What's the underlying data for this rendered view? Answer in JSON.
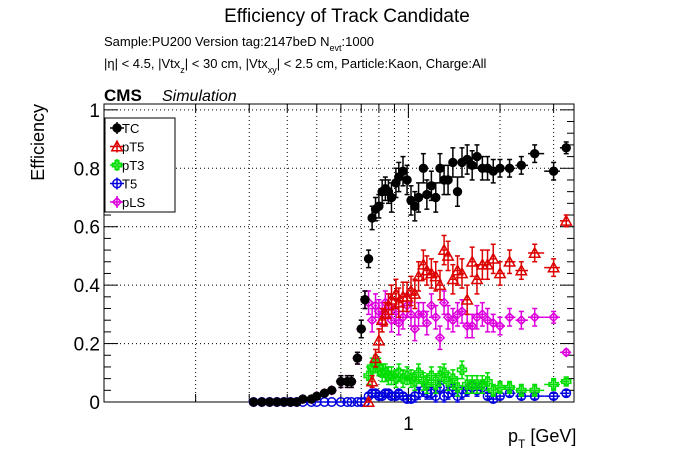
{
  "header": {
    "title": "Efficiency of Track Candidate",
    "line1_sample": "Sample:PU200   Version tag:2147beD  N",
    "line1_sub": "evt",
    "line1_end": ":1000",
    "line2_a": "|η| < 4.5, |Vtx",
    "line2_sub1": "z",
    "line2_b": "| < 30 cm, |Vtx",
    "line2_sub2": "xy",
    "line2_c": "| < 2.5 cm, Particle:Kaon, Charge:All"
  },
  "cms_label": "CMS",
  "sim_label": "Simulation",
  "chart_data": {
    "type": "scatter",
    "title": "Efficiency of Track Candidate",
    "xlabel": "p_T [GeV]",
    "xlabel_main": "p",
    "xlabel_sub": "T",
    "xlabel_unit": " [GeV]",
    "ylabel": "Efficiency",
    "x_scale": "log",
    "xlim": [
      0.1,
      3.5
    ],
    "ylim": [
      0,
      1.02
    ],
    "grid": true,
    "legend_position": "top-left",
    "x_tick_labels": [
      {
        "value": 1,
        "label": "1"
      }
    ],
    "y_ticks": [
      0,
      0.2,
      0.4,
      0.6,
      0.8,
      1
    ],
    "y_tick_labels": [
      "0",
      "0.2",
      "0.4",
      "0.6",
      "0.8",
      "1"
    ],
    "series": [
      {
        "name": "TC",
        "color": "#000000",
        "marker": "filled-circle",
        "x": [
          0.31,
          0.33,
          0.35,
          0.37,
          0.39,
          0.41,
          0.43,
          0.45,
          0.48,
          0.5,
          0.53,
          0.56,
          0.6,
          0.63,
          0.65,
          0.68,
          0.7,
          0.72,
          0.74,
          0.76,
          0.78,
          0.8,
          0.82,
          0.84,
          0.86,
          0.88,
          0.91,
          0.93,
          0.96,
          0.99,
          1.02,
          1.05,
          1.08,
          1.12,
          1.15,
          1.19,
          1.23,
          1.27,
          1.31,
          1.35,
          1.4,
          1.45,
          1.5,
          1.56,
          1.62,
          1.68,
          1.75,
          1.82,
          1.9,
          2.0,
          2.15,
          2.35,
          2.6,
          3.0,
          3.3
        ],
        "y": [
          0.0,
          0.0,
          0.0,
          0.0,
          0.0,
          0.0,
          0.0,
          0.01,
          0.01,
          0.02,
          0.03,
          0.04,
          0.07,
          0.07,
          0.07,
          0.15,
          0.25,
          0.35,
          0.49,
          0.63,
          0.66,
          0.67,
          0.72,
          0.73,
          0.72,
          0.7,
          0.75,
          0.77,
          0.79,
          0.76,
          0.69,
          0.67,
          0.7,
          0.8,
          0.71,
          0.74,
          0.7,
          0.8,
          0.76,
          0.76,
          0.82,
          0.72,
          0.82,
          0.83,
          0.81,
          0.84,
          0.8,
          0.8,
          0.79,
          0.8,
          0.8,
          0.81,
          0.85,
          0.79,
          0.87
        ],
        "err": [
          0.01,
          0.01,
          0.01,
          0.01,
          0.01,
          0.01,
          0.01,
          0.01,
          0.01,
          0.01,
          0.01,
          0.01,
          0.02,
          0.02,
          0.02,
          0.02,
          0.03,
          0.03,
          0.03,
          0.04,
          0.04,
          0.04,
          0.04,
          0.04,
          0.04,
          0.05,
          0.05,
          0.05,
          0.05,
          0.05,
          0.05,
          0.05,
          0.05,
          0.05,
          0.05,
          0.05,
          0.05,
          0.05,
          0.05,
          0.05,
          0.05,
          0.05,
          0.05,
          0.05,
          0.05,
          0.04,
          0.04,
          0.04,
          0.04,
          0.03,
          0.03,
          0.03,
          0.03,
          0.03,
          0.02
        ]
      },
      {
        "name": "pT5",
        "color": "#dd0000",
        "marker": "open-triangle-up",
        "x": [
          0.74,
          0.76,
          0.78,
          0.8,
          0.82,
          0.84,
          0.86,
          0.88,
          0.91,
          0.93,
          0.96,
          0.99,
          1.02,
          1.05,
          1.08,
          1.12,
          1.15,
          1.19,
          1.23,
          1.27,
          1.31,
          1.35,
          1.4,
          1.45,
          1.5,
          1.56,
          1.62,
          1.68,
          1.75,
          1.82,
          1.9,
          2.0,
          2.15,
          2.35,
          2.6,
          3.0,
          3.3
        ],
        "y": [
          0.0,
          0.07,
          0.15,
          0.21,
          0.28,
          0.3,
          0.33,
          0.35,
          0.37,
          0.34,
          0.36,
          0.36,
          0.38,
          0.37,
          0.43,
          0.47,
          0.45,
          0.44,
          0.43,
          0.4,
          0.52,
          0.5,
          0.42,
          0.45,
          0.44,
          0.35,
          0.48,
          0.42,
          0.47,
          0.47,
          0.49,
          0.44,
          0.48,
          0.45,
          0.51,
          0.46,
          0.62
        ],
        "err": [
          0.01,
          0.02,
          0.03,
          0.04,
          0.04,
          0.04,
          0.04,
          0.05,
          0.05,
          0.05,
          0.05,
          0.05,
          0.05,
          0.05,
          0.05,
          0.05,
          0.05,
          0.05,
          0.05,
          0.05,
          0.05,
          0.05,
          0.05,
          0.05,
          0.05,
          0.05,
          0.05,
          0.05,
          0.05,
          0.05,
          0.05,
          0.04,
          0.04,
          0.03,
          0.03,
          0.03,
          0.02
        ]
      },
      {
        "name": "pT3",
        "color": "#00dd00",
        "marker": "open-cross",
        "x": [
          0.74,
          0.76,
          0.78,
          0.8,
          0.82,
          0.84,
          0.86,
          0.88,
          0.91,
          0.93,
          0.96,
          0.99,
          1.02,
          1.05,
          1.08,
          1.12,
          1.15,
          1.19,
          1.23,
          1.27,
          1.31,
          1.35,
          1.4,
          1.45,
          1.5,
          1.56,
          1.62,
          1.68,
          1.75,
          1.82,
          1.9,
          2.0,
          2.15,
          2.35,
          2.6,
          3.0,
          3.3
        ],
        "y": [
          0.09,
          0.12,
          0.13,
          0.12,
          0.1,
          0.1,
          0.09,
          0.09,
          0.08,
          0.1,
          0.08,
          0.09,
          0.08,
          0.07,
          0.1,
          0.07,
          0.06,
          0.09,
          0.06,
          0.09,
          0.1,
          0.07,
          0.08,
          0.05,
          0.11,
          0.06,
          0.06,
          0.06,
          0.06,
          0.07,
          0.04,
          0.05,
          0.05,
          0.04,
          0.04,
          0.06,
          0.07
        ],
        "err": [
          0.03,
          0.03,
          0.03,
          0.03,
          0.03,
          0.03,
          0.03,
          0.03,
          0.03,
          0.03,
          0.03,
          0.03,
          0.03,
          0.03,
          0.03,
          0.03,
          0.03,
          0.03,
          0.03,
          0.03,
          0.03,
          0.03,
          0.03,
          0.03,
          0.03,
          0.03,
          0.03,
          0.03,
          0.03,
          0.03,
          0.02,
          0.02,
          0.02,
          0.02,
          0.02,
          0.02,
          0.01
        ]
      },
      {
        "name": "T5",
        "color": "#0000dd",
        "marker": "open-circle",
        "x": [
          0.31,
          0.33,
          0.35,
          0.37,
          0.39,
          0.41,
          0.43,
          0.45,
          0.48,
          0.5,
          0.53,
          0.56,
          0.6,
          0.63,
          0.65,
          0.68,
          0.7,
          0.72,
          0.74,
          0.76,
          0.78,
          0.8,
          0.82,
          0.84,
          0.86,
          0.88,
          0.91,
          0.93,
          0.96,
          0.99,
          1.02,
          1.05,
          1.08,
          1.12,
          1.15,
          1.19,
          1.23,
          1.27,
          1.31,
          1.35,
          1.4,
          1.45,
          1.5,
          1.56,
          1.62,
          1.68,
          1.75,
          1.82,
          1.9,
          2.0,
          2.15,
          2.35,
          2.6,
          3.0,
          3.3
        ],
        "y": [
          0,
          0,
          0,
          0,
          0,
          0,
          0,
          0,
          0,
          0,
          0,
          0,
          0,
          0,
          0,
          0,
          0,
          0,
          0.02,
          0.03,
          0.03,
          0.02,
          0.02,
          0.03,
          0.03,
          0.02,
          0.02,
          0.03,
          0.02,
          0.01,
          0.01,
          0.02,
          0.03,
          0.04,
          0.03,
          0.03,
          0.02,
          0.05,
          0.02,
          0.03,
          0.04,
          0.02,
          0.03,
          0.04,
          0.05,
          0.04,
          0.05,
          0.02,
          0.01,
          0.02,
          0.03,
          0.02,
          0.02,
          0.02,
          0.03
        ],
        "err": [
          0,
          0,
          0,
          0,
          0,
          0,
          0,
          0,
          0,
          0,
          0,
          0,
          0,
          0,
          0,
          0,
          0,
          0,
          0.01,
          0.01,
          0.01,
          0.01,
          0.01,
          0.01,
          0.01,
          0.01,
          0.01,
          0.01,
          0.01,
          0.01,
          0.01,
          0.02,
          0.02,
          0.02,
          0.02,
          0.02,
          0.02,
          0.02,
          0.02,
          0.02,
          0.02,
          0.02,
          0.02,
          0.02,
          0.02,
          0.02,
          0.02,
          0.01,
          0.01,
          0.01,
          0.01,
          0.01,
          0.01,
          0.01,
          0.01
        ]
      },
      {
        "name": "pLS",
        "color": "#dd00dd",
        "marker": "open-diamond",
        "x": [
          0.31,
          0.33,
          0.35,
          0.37,
          0.39,
          0.41,
          0.43,
          0.45,
          0.48,
          0.5,
          0.53,
          0.56,
          0.6,
          0.63,
          0.65,
          0.68,
          0.7,
          0.72,
          0.74,
          0.76,
          0.78,
          0.8,
          0.82,
          0.84,
          0.86,
          0.88,
          0.91,
          0.93,
          0.96,
          0.99,
          1.02,
          1.05,
          1.08,
          1.12,
          1.15,
          1.19,
          1.23,
          1.27,
          1.31,
          1.35,
          1.4,
          1.45,
          1.5,
          1.56,
          1.62,
          1.68,
          1.75,
          1.82,
          1.9,
          2.0,
          2.15,
          2.35,
          2.6,
          3.0,
          3.3
        ],
        "y": [
          0.0,
          0.0,
          0.0,
          0.0,
          0.0,
          0.0,
          0.0,
          0.01,
          0.01,
          0.02,
          0.03,
          0.04,
          0.07,
          0.07,
          0.07,
          0.15,
          0.25,
          0.35,
          0.34,
          0.28,
          0.33,
          0.31,
          0.3,
          0.34,
          0.33,
          0.28,
          0.31,
          0.27,
          0.29,
          0.33,
          0.3,
          0.25,
          0.3,
          0.3,
          0.27,
          0.33,
          0.29,
          0.22,
          0.34,
          0.29,
          0.28,
          0.3,
          0.31,
          0.26,
          0.26,
          0.29,
          0.3,
          0.28,
          0.27,
          0.26,
          0.29,
          0.28,
          0.29,
          0.29,
          0.17
        ],
        "err": [
          0.01,
          0.01,
          0.01,
          0.01,
          0.01,
          0.01,
          0.01,
          0.01,
          0.01,
          0.01,
          0.01,
          0.01,
          0.02,
          0.02,
          0.02,
          0.02,
          0.03,
          0.03,
          0.04,
          0.04,
          0.04,
          0.04,
          0.04,
          0.04,
          0.04,
          0.04,
          0.04,
          0.04,
          0.04,
          0.04,
          0.04,
          0.04,
          0.04,
          0.04,
          0.04,
          0.04,
          0.04,
          0.04,
          0.04,
          0.04,
          0.04,
          0.04,
          0.04,
          0.04,
          0.04,
          0.04,
          0.04,
          0.04,
          0.03,
          0.03,
          0.03,
          0.03,
          0.03,
          0.02,
          0.01
        ]
      }
    ]
  }
}
